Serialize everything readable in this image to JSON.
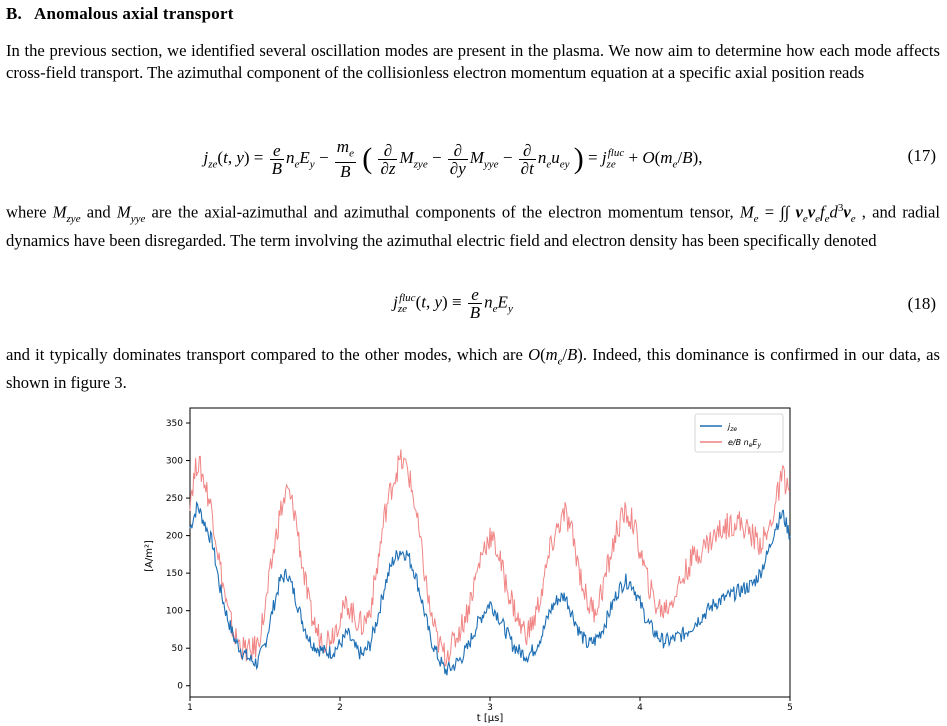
{
  "section": {
    "number": "B.",
    "title": "Anomalous axial transport"
  },
  "paragraphs": {
    "intro": "In the previous section, we identified several oscillation modes are present in the plasma. We now aim to determine how each mode affects cross-field transport. The azimuthal component of the collisionless electron momentum equation at a specific axial position reads",
    "after_eq17_part1": "where M",
    "after_eq17": "where M_zye and M_yye are the axial-azimuthal and azimuthal components of the electron momentum tensor, M_e = ∫∫ v_e v_e f_e d³v_e , and radial dynamics have been disregarded. The term involving the azimuthal electric field and electron density has been specifically denoted",
    "after_eq18": "and it typically dominates transport compared to the other modes, which are O(m_e/B). Indeed, this dominance is confirmed in our data, as shown in figure 3."
  },
  "equations": {
    "eq17_number": "(17)",
    "eq18_number": "(18)"
  },
  "chart_data": {
    "type": "line",
    "xlabel": "t [μs]",
    "ylabel": "[A/m²]",
    "xlim": [
      1,
      5
    ],
    "ylim": [
      -15,
      370
    ],
    "xticks": [
      1,
      2,
      3,
      4,
      5
    ],
    "yticks": [
      0,
      50,
      100,
      150,
      200,
      250,
      300,
      350
    ],
    "legend_position": "upper right",
    "grid": false,
    "series": [
      {
        "name": "j̅_ze",
        "color": "#1f6fb4",
        "x": [
          1.0,
          1.05,
          1.1,
          1.15,
          1.2,
          1.25,
          1.3,
          1.35,
          1.4,
          1.45,
          1.5,
          1.55,
          1.6,
          1.65,
          1.7,
          1.75,
          1.8,
          1.85,
          1.9,
          1.95,
          2.0,
          2.05,
          2.1,
          2.15,
          2.2,
          2.25,
          2.3,
          2.35,
          2.4,
          2.45,
          2.5,
          2.55,
          2.6,
          2.65,
          2.7,
          2.75,
          2.8,
          2.85,
          2.9,
          2.95,
          3.0,
          3.05,
          3.1,
          3.15,
          3.2,
          3.25,
          3.3,
          3.35,
          3.4,
          3.45,
          3.5,
          3.55,
          3.6,
          3.65,
          3.7,
          3.75,
          3.8,
          3.85,
          3.9,
          3.95,
          4.0,
          4.05,
          4.1,
          4.15,
          4.2,
          4.25,
          4.3,
          4.35,
          4.4,
          4.45,
          4.5,
          4.55,
          4.6,
          4.65,
          4.7,
          4.75,
          4.8,
          4.85,
          4.9,
          4.95,
          5.0
        ],
        "y": [
          210,
          240,
          215,
          190,
          130,
          90,
          60,
          45,
          35,
          30,
          55,
          100,
          140,
          150,
          120,
          85,
          60,
          50,
          45,
          45,
          55,
          70,
          50,
          40,
          55,
          90,
          135,
          165,
          180,
          175,
          150,
          110,
          65,
          40,
          20,
          25,
          35,
          50,
          75,
          95,
          110,
          95,
          75,
          55,
          45,
          40,
          50,
          70,
          100,
          115,
          120,
          95,
          70,
          55,
          60,
          75,
          100,
          125,
          140,
          135,
          110,
          85,
          70,
          60,
          60,
          65,
          70,
          80,
          90,
          100,
          110,
          115,
          120,
          125,
          130,
          135,
          150,
          175,
          210,
          230,
          200
        ]
      },
      {
        "name": "e/B n_e E_y",
        "color": "#f08080",
        "x": [
          1.0,
          1.05,
          1.1,
          1.15,
          1.2,
          1.25,
          1.3,
          1.35,
          1.4,
          1.45,
          1.5,
          1.55,
          1.6,
          1.65,
          1.7,
          1.75,
          1.8,
          1.85,
          1.9,
          1.95,
          2.0,
          2.05,
          2.1,
          2.15,
          2.2,
          2.25,
          2.3,
          2.35,
          2.4,
          2.45,
          2.5,
          2.55,
          2.6,
          2.65,
          2.7,
          2.75,
          2.8,
          2.85,
          2.9,
          2.95,
          3.0,
          3.05,
          3.1,
          3.15,
          3.2,
          3.25,
          3.3,
          3.35,
          3.4,
          3.45,
          3.5,
          3.55,
          3.6,
          3.65,
          3.7,
          3.75,
          3.8,
          3.85,
          3.9,
          3.95,
          4.0,
          4.05,
          4.1,
          4.15,
          4.2,
          4.25,
          4.3,
          4.35,
          4.4,
          4.45,
          4.5,
          4.55,
          4.6,
          4.65,
          4.7,
          4.75,
          4.8,
          4.85,
          4.9,
          4.95,
          5.0
        ],
        "y": [
          250,
          300,
          270,
          230,
          160,
          100,
          65,
          50,
          45,
          55,
          100,
          170,
          230,
          260,
          230,
          160,
          100,
          70,
          60,
          70,
          90,
          110,
          90,
          80,
          100,
          160,
          230,
          270,
          300,
          290,
          240,
          170,
          100,
          60,
          40,
          55,
          75,
          100,
          140,
          180,
          200,
          180,
          140,
          110,
          80,
          70,
          90,
          130,
          180,
          210,
          230,
          200,
          150,
          110,
          100,
          130,
          170,
          210,
          230,
          220,
          180,
          140,
          110,
          100,
          110,
          130,
          150,
          170,
          180,
          190,
          200,
          210,
          215,
          220,
          210,
          200,
          190,
          200,
          240,
          280,
          260
        ]
      }
    ]
  }
}
